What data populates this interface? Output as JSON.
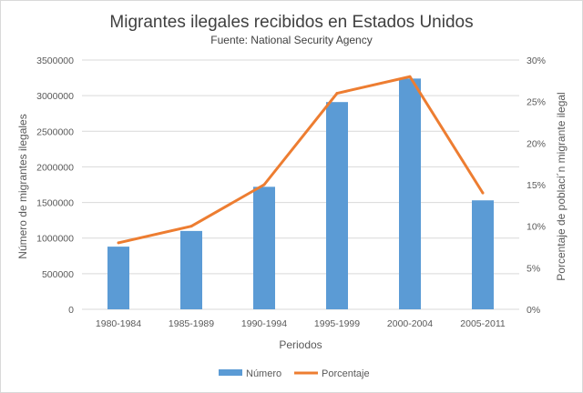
{
  "chart_data": {
    "type": "bar",
    "title": "Migrantes ilegales recibidos en Estados Unidos",
    "subtitle": "Fuente:  National Security Agency",
    "xlabel": "Periodos",
    "ylabel": "Número  de migrantes ilegales",
    "y2label": "Porcentaje de poblaci´n migrante ilegal",
    "categories": [
      "1980-1984",
      "1985-1989",
      "1990-1994",
      "1995-1999",
      "2000-2004",
      "2005-2011"
    ],
    "ylim": [
      0,
      3500000
    ],
    "yticks": [
      "0",
      "500000",
      "1000000",
      "1500000",
      "2000000",
      "2500000",
      "3000000",
      "3500000"
    ],
    "y2lim": [
      0,
      30
    ],
    "y2ticks": [
      "0%",
      "5%",
      "10%",
      "15%",
      "20%",
      "25%",
      "30%"
    ],
    "grid": true,
    "legend_position": "bottom",
    "series": [
      {
        "name": "Número",
        "type": "bar",
        "axis": "left",
        "color": "#5b9bd5",
        "values": [
          880000,
          1100000,
          1720000,
          2910000,
          3240000,
          1530000
        ]
      },
      {
        "name": "Porcentaje",
        "type": "line",
        "axis": "right",
        "color": "#ed7d31",
        "values": [
          8,
          10,
          15,
          26,
          28,
          14
        ]
      }
    ]
  }
}
